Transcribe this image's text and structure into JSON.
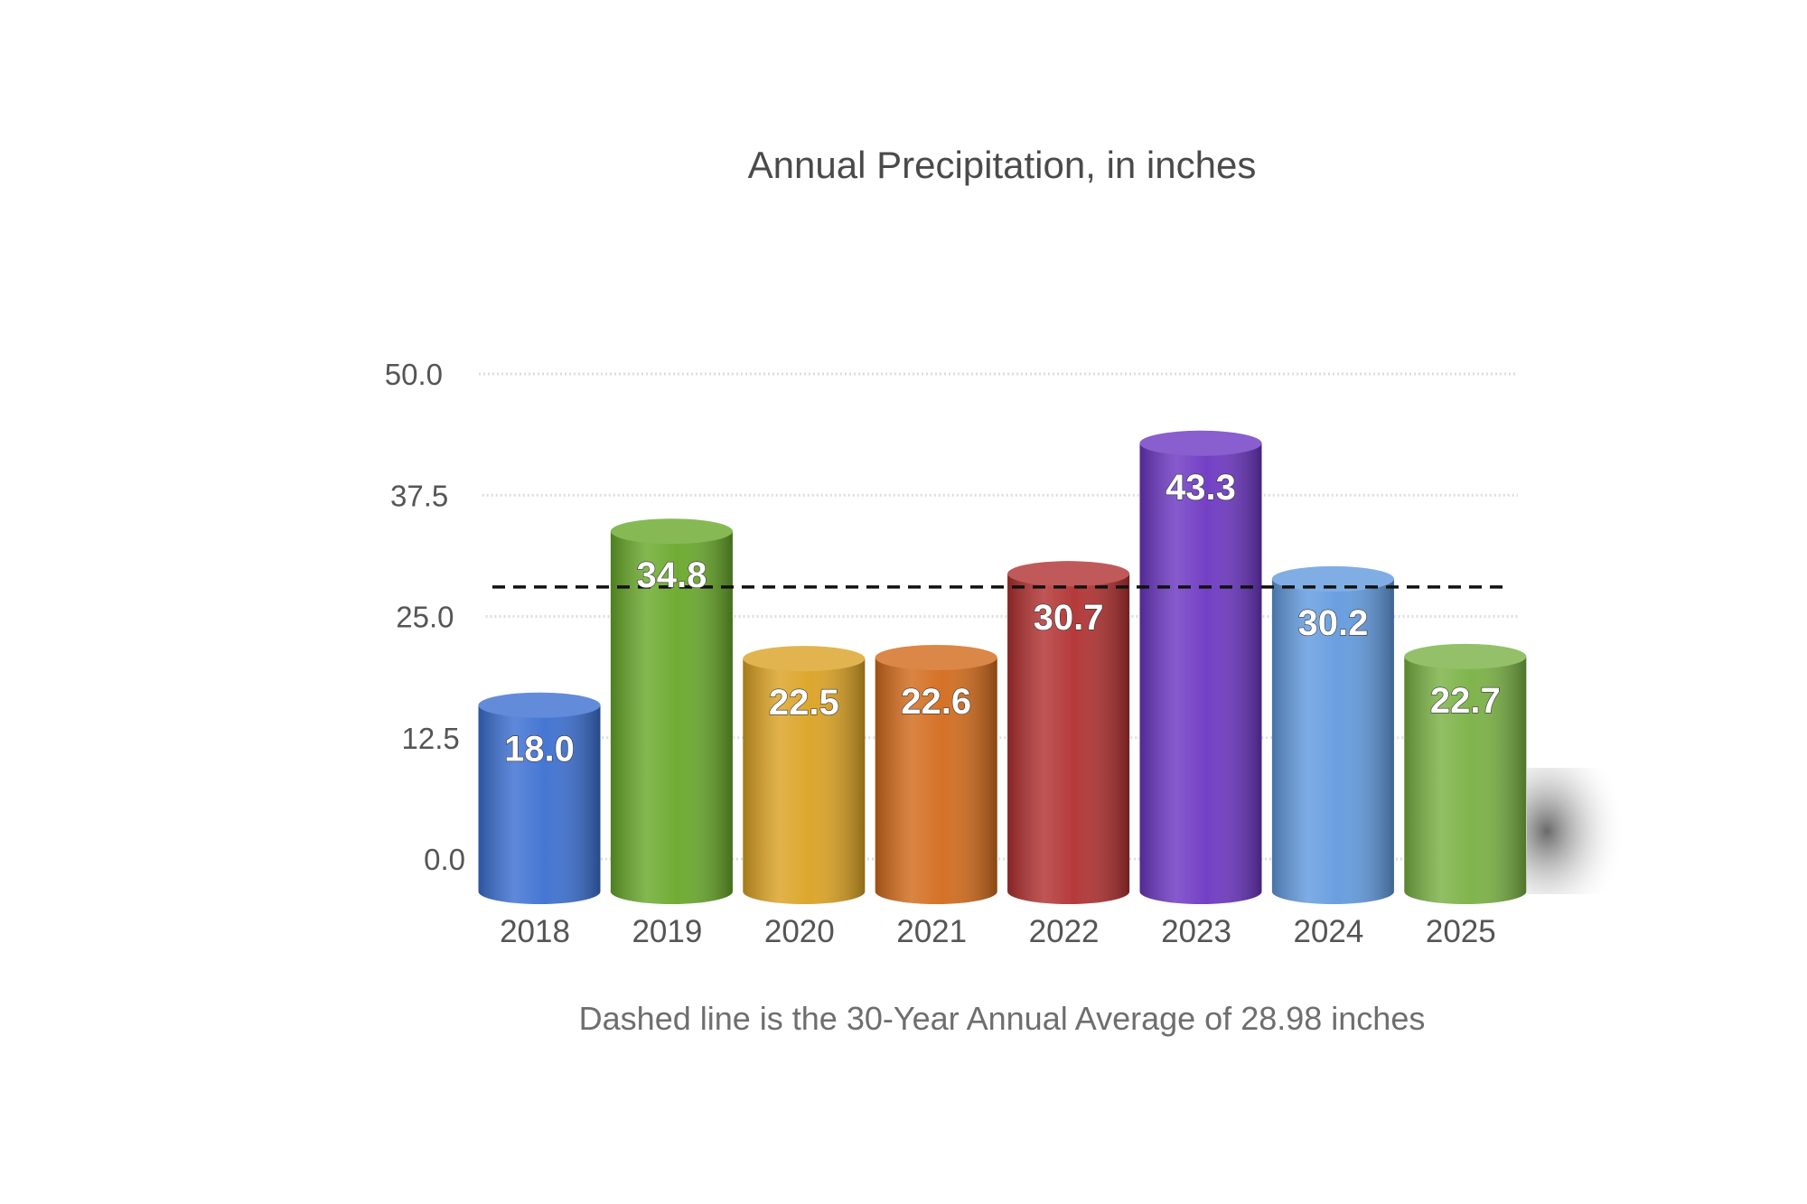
{
  "chart_data": {
    "type": "bar",
    "title": "Annual Precipitation, in inches",
    "caption": "Dashed line is the 30-Year Annual Average of 28.98 inches",
    "categories": [
      "2018",
      "2019",
      "2020",
      "2021",
      "2022",
      "2023",
      "2024",
      "2025"
    ],
    "values": [
      18.0,
      34.8,
      22.5,
      22.6,
      30.7,
      43.3,
      30.2,
      22.7
    ],
    "value_labels": [
      "18.0",
      "34.8",
      "22.5",
      "22.6",
      "30.7",
      "43.3",
      "30.2",
      "22.7"
    ],
    "colors": [
      "#3b6fd1",
      "#68a82a",
      "#dba223",
      "#d26a1b",
      "#b13030",
      "#6c36c2",
      "#619ade",
      "#79b143"
    ],
    "yticks": [
      "0.0",
      "12.5",
      "25.0",
      "37.5",
      "50.0"
    ],
    "ytick_values": [
      0,
      12.5,
      25,
      37.5,
      50
    ],
    "ylim": [
      0,
      50
    ],
    "average_line": 28.98,
    "grid": true,
    "xlabel": "",
    "ylabel": ""
  }
}
